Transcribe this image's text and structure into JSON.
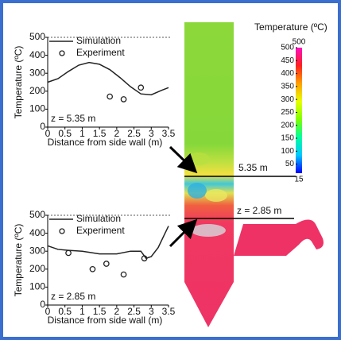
{
  "chart_data": [
    {
      "type": "line",
      "xlabel": "Distance from side wall (m)",
      "ylabel": "Temperature (ºC)",
      "annotation": "z = 5.35 m",
      "xlim": [
        0,
        3.5
      ],
      "xticks": [
        0,
        0.5,
        1,
        1.5,
        2,
        2.5,
        3,
        3.5
      ],
      "ylim": [
        0,
        500
      ],
      "yticks": [
        0,
        100,
        200,
        300,
        400,
        500
      ],
      "series": [
        {
          "name": "Simulation",
          "color": "#222222",
          "x": [
            0,
            0.3,
            0.6,
            0.9,
            1.2,
            1.5,
            1.8,
            2.1,
            2.4,
            2.7,
            3.0,
            3.3,
            3.5
          ],
          "values": [
            250,
            270,
            310,
            345,
            360,
            350,
            320,
            275,
            225,
            185,
            180,
            205,
            220
          ]
        },
        {
          "name": "Experiment",
          "type": "scatter",
          "color": "#222222",
          "x": [
            1.8,
            2.2,
            2.7
          ],
          "values": [
            170,
            155,
            220
          ]
        }
      ]
    },
    {
      "type": "line",
      "xlabel": "Distance from side wall (m)",
      "ylabel": "Temperature (ºC)",
      "annotation": "z = 2.85 m",
      "xlim": [
        0,
        3.5
      ],
      "xticks": [
        0,
        0.5,
        1,
        1.5,
        2,
        2.5,
        3,
        3.5
      ],
      "ylim": [
        0,
        500
      ],
      "yticks": [
        0,
        100,
        200,
        300,
        400,
        500
      ],
      "series": [
        {
          "name": "Simulation",
          "color": "#222222",
          "x": [
            0,
            0.3,
            0.6,
            1,
            1.5,
            2,
            2.4,
            2.7,
            2.85,
            3,
            3.2,
            3.4,
            3.5
          ],
          "values": [
            330,
            310,
            305,
            300,
            285,
            285,
            300,
            300,
            260,
            270,
            320,
            400,
            440
          ]
        },
        {
          "name": "Experiment",
          "type": "scatter",
          "color": "#222222",
          "x": [
            0.6,
            1.3,
            1.7,
            2.2,
            2.8
          ],
          "values": [
            290,
            200,
            230,
            170,
            260
          ]
        }
      ]
    },
    {
      "type": "colorbar",
      "title": "Temperature (ºC)",
      "zlim": [
        15,
        500
      ],
      "zticks": [
        500,
        450,
        400,
        350,
        300,
        250,
        200,
        150,
        100,
        50
      ],
      "colors": [
        "#0000ff",
        "#00c8ff",
        "#00ffa0",
        "#80ff00",
        "#e8ff00",
        "#ffa000",
        "#ff2020",
        "#ff10c0"
      ]
    }
  ],
  "contour_labels": [
    "5.35 m",
    "z = 2.85 m"
  ]
}
